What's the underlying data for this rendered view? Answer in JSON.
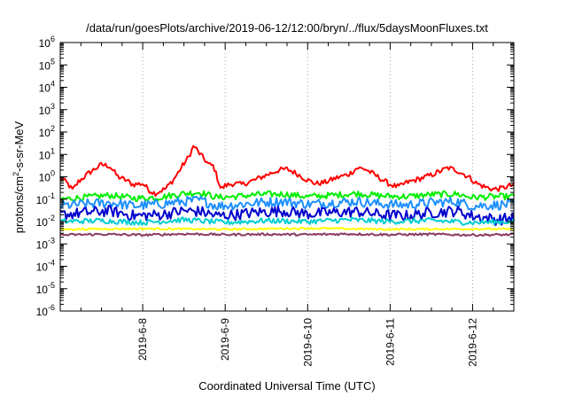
{
  "chart_data": {
    "type": "line",
    "title": "/data/run/goesPlots/archive/2019-06-12/12:00/bryn/../flux/5daysMoonFluxes.txt",
    "xlabel": "Coordinated Universal Time (UTC)",
    "ylabel": "protons/cm²-s-sr-MeV",
    "ylabel_parts": {
      "base": "protons/cm",
      "sup": "2",
      "rest": "-s-sr-MeV"
    },
    "yscale": "log",
    "ylim_exp": [
      -6,
      6
    ],
    "xlim_days": [
      0,
      5.5
    ],
    "x_ticks": [
      {
        "label": "2019-6-8",
        "day": 1
      },
      {
        "label": "2019-6-9",
        "day": 2
      },
      {
        "label": "2019-6-10",
        "day": 3
      },
      {
        "label": "2019-6-11",
        "day": 4
      },
      {
        "label": "2019-6-12",
        "day": 5
      }
    ],
    "y_ticks": [
      {
        "base": "10",
        "exp": "-6"
      },
      {
        "base": "10",
        "exp": "-5"
      },
      {
        "base": "10",
        "exp": "-4"
      },
      {
        "base": "10",
        "exp": "-3"
      },
      {
        "base": "10",
        "exp": "-2"
      },
      {
        "base": "10",
        "exp": "-1"
      },
      {
        "base": "10",
        "exp": "0"
      },
      {
        "base": "10",
        "exp": "1"
      },
      {
        "base": "10",
        "exp": "2"
      },
      {
        "base": "10",
        "exp": "3"
      },
      {
        "base": "10",
        "exp": "4"
      },
      {
        "base": "10",
        "exp": "5"
      },
      {
        "base": "10",
        "exp": "6"
      }
    ],
    "grid": true,
    "series": [
      {
        "color": "#ff0000",
        "width": 2,
        "jitter": 0.12,
        "points": [
          [
            0,
            0.9
          ],
          [
            0.08,
            0.55
          ],
          [
            0.15,
            0.25
          ],
          [
            0.22,
            0.6
          ],
          [
            0.35,
            1.5
          ],
          [
            0.5,
            3.5
          ],
          [
            0.6,
            3.0
          ],
          [
            0.7,
            1.0
          ],
          [
            0.8,
            0.7
          ],
          [
            0.88,
            0.45
          ],
          [
            1.0,
            0.5
          ],
          [
            1.08,
            0.25
          ],
          [
            1.15,
            0.18
          ],
          [
            1.28,
            0.3
          ],
          [
            1.38,
            0.8
          ],
          [
            1.48,
            3.0
          ],
          [
            1.56,
            8.0
          ],
          [
            1.62,
            25
          ],
          [
            1.68,
            12
          ],
          [
            1.75,
            6.0
          ],
          [
            1.8,
            3.5
          ],
          [
            1.86,
            3.0
          ],
          [
            1.9,
            1.0
          ],
          [
            1.95,
            0.28
          ],
          [
            2.0,
            0.4
          ],
          [
            2.1,
            0.5
          ],
          [
            2.2,
            0.45
          ],
          [
            2.35,
            0.7
          ],
          [
            2.5,
            1.2
          ],
          [
            2.65,
            2.0
          ],
          [
            2.75,
            2.2
          ],
          [
            2.85,
            1.5
          ],
          [
            3.0,
            0.7
          ],
          [
            3.1,
            0.5
          ],
          [
            3.2,
            0.55
          ],
          [
            3.35,
            0.9
          ],
          [
            3.5,
            1.3
          ],
          [
            3.6,
            2.5
          ],
          [
            3.7,
            2.2
          ],
          [
            3.85,
            1.0
          ],
          [
            4.0,
            0.45
          ],
          [
            4.1,
            0.35
          ],
          [
            4.2,
            0.55
          ],
          [
            4.35,
            0.8
          ],
          [
            4.5,
            1.2
          ],
          [
            4.7,
            2.5
          ],
          [
            4.8,
            2.0
          ],
          [
            4.95,
            1.0
          ],
          [
            5.05,
            0.5
          ],
          [
            5.15,
            0.35
          ],
          [
            5.25,
            0.28
          ],
          [
            5.35,
            0.3
          ],
          [
            5.45,
            0.4
          ],
          [
            5.5,
            0.42
          ]
        ]
      },
      {
        "color": "#00ee00",
        "width": 2,
        "jitter": 0.14,
        "points": [
          [
            0,
            0.1
          ],
          [
            0.3,
            0.12
          ],
          [
            0.6,
            0.15
          ],
          [
            0.9,
            0.11
          ],
          [
            1.2,
            0.12
          ],
          [
            1.5,
            0.18
          ],
          [
            1.7,
            0.2
          ],
          [
            1.9,
            0.12
          ],
          [
            2.1,
            0.13
          ],
          [
            2.4,
            0.16
          ],
          [
            2.7,
            0.17
          ],
          [
            3.0,
            0.13
          ],
          [
            3.3,
            0.15
          ],
          [
            3.6,
            0.18
          ],
          [
            3.9,
            0.14
          ],
          [
            4.2,
            0.13
          ],
          [
            4.5,
            0.16
          ],
          [
            4.8,
            0.17
          ],
          [
            5.0,
            0.12
          ],
          [
            5.3,
            0.13
          ],
          [
            5.5,
            0.13
          ]
        ]
      },
      {
        "color": "#1e90ff",
        "width": 2,
        "jitter": 0.22,
        "points": [
          [
            0,
            0.05
          ],
          [
            0.3,
            0.06
          ],
          [
            0.6,
            0.07
          ],
          [
            0.9,
            0.05
          ],
          [
            1.2,
            0.06
          ],
          [
            1.5,
            0.08
          ],
          [
            1.7,
            0.09
          ],
          [
            1.9,
            0.05
          ],
          [
            2.1,
            0.055
          ],
          [
            2.4,
            0.07
          ],
          [
            2.7,
            0.08
          ],
          [
            3.0,
            0.06
          ],
          [
            3.3,
            0.07
          ],
          [
            3.6,
            0.08
          ],
          [
            3.9,
            0.06
          ],
          [
            4.2,
            0.055
          ],
          [
            4.5,
            0.07
          ],
          [
            4.8,
            0.08
          ],
          [
            5.0,
            0.05
          ],
          [
            5.3,
            0.055
          ],
          [
            5.5,
            0.06
          ]
        ]
      },
      {
        "color": "#0000cd",
        "width": 2,
        "jitter": 0.25,
        "points": [
          [
            0,
            0.02
          ],
          [
            0.3,
            0.025
          ],
          [
            0.6,
            0.03
          ],
          [
            0.9,
            0.018
          ],
          [
            1.2,
            0.02
          ],
          [
            1.5,
            0.03
          ],
          [
            1.7,
            0.028
          ],
          [
            1.9,
            0.018
          ],
          [
            2.1,
            0.02
          ],
          [
            2.4,
            0.026
          ],
          [
            2.7,
            0.03
          ],
          [
            3.0,
            0.022
          ],
          [
            3.3,
            0.025
          ],
          [
            3.6,
            0.028
          ],
          [
            3.9,
            0.02
          ],
          [
            4.2,
            0.018
          ],
          [
            4.5,
            0.025
          ],
          [
            4.8,
            0.03
          ],
          [
            5.0,
            0.018
          ],
          [
            5.3,
            0.012
          ],
          [
            5.5,
            0.015
          ]
        ]
      },
      {
        "color": "#00ced1",
        "width": 2,
        "jitter": 0.12,
        "points": [
          [
            0,
            0.01
          ],
          [
            0.5,
            0.011
          ],
          [
            1.0,
            0.009
          ],
          [
            1.5,
            0.012
          ],
          [
            2.0,
            0.009
          ],
          [
            2.5,
            0.011
          ],
          [
            3.0,
            0.01
          ],
          [
            3.5,
            0.012
          ],
          [
            4.0,
            0.01
          ],
          [
            4.5,
            0.011
          ],
          [
            5.0,
            0.009
          ],
          [
            5.5,
            0.01
          ]
        ]
      },
      {
        "color": "#ffff00",
        "width": 2,
        "jitter": 0.04,
        "points": [
          [
            0,
            0.0045
          ],
          [
            1.0,
            0.0048
          ],
          [
            2.0,
            0.0045
          ],
          [
            3.0,
            0.005
          ],
          [
            4.0,
            0.0045
          ],
          [
            5.0,
            0.0047
          ],
          [
            5.5,
            0.0045
          ]
        ]
      },
      {
        "color": "#8b3a62",
        "width": 2,
        "jitter": 0.05,
        "points": [
          [
            0,
            0.0025
          ],
          [
            0.5,
            0.0027
          ],
          [
            1.0,
            0.0025
          ],
          [
            1.5,
            0.0028
          ],
          [
            2.0,
            0.0026
          ],
          [
            2.5,
            0.0027
          ],
          [
            3.0,
            0.0026
          ],
          [
            3.5,
            0.0028
          ],
          [
            4.0,
            0.0026
          ],
          [
            4.5,
            0.0027
          ],
          [
            5.0,
            0.0025
          ],
          [
            5.5,
            0.0026
          ]
        ]
      }
    ]
  }
}
